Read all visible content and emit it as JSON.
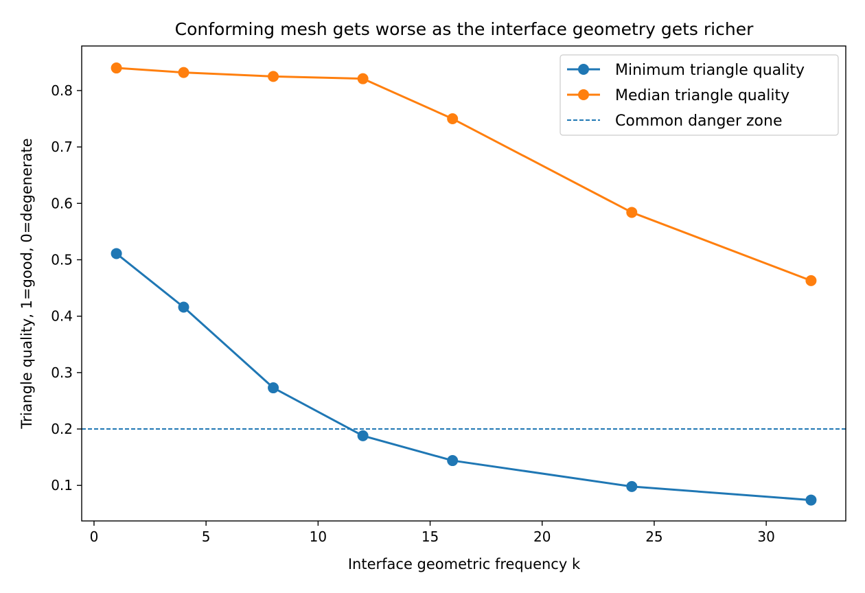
{
  "chart_data": {
    "type": "line",
    "title": "Conforming mesh gets worse as the interface geometry gets richer",
    "xlabel": "Interface geometric frequency k",
    "ylabel": "Triangle quality, 1=good, 0=degenerate",
    "x": [
      1,
      4,
      8,
      12,
      16,
      24,
      32
    ],
    "xlim": [
      -0.55,
      33.55
    ],
    "ylim": [
      0.037,
      0.879
    ],
    "xticks": [
      0,
      5,
      10,
      15,
      20,
      25,
      30
    ],
    "xtick_labels": [
      "0",
      "5",
      "10",
      "15",
      "20",
      "25",
      "30"
    ],
    "yticks": [
      0.1,
      0.2,
      0.3,
      0.4,
      0.5,
      0.6,
      0.7,
      0.8
    ],
    "ytick_labels": [
      "0.1",
      "0.2",
      "0.3",
      "0.4",
      "0.5",
      "0.6",
      "0.7",
      "0.8"
    ],
    "grid": false,
    "legend_position": "top-right",
    "series": [
      {
        "name": "Minimum triangle quality",
        "values": [
          0.511,
          0.416,
          0.273,
          0.188,
          0.144,
          0.098,
          0.074
        ],
        "color": "#1f77b4",
        "marker": "circle"
      },
      {
        "name": "Median triangle quality",
        "values": [
          0.84,
          0.832,
          0.825,
          0.821,
          0.75,
          0.584,
          0.463
        ],
        "color": "#ff7f0e",
        "marker": "circle"
      }
    ],
    "reference_lines": [
      {
        "name": "Common danger zone",
        "y": 0.2,
        "style": "dashed",
        "color": "#1f77b4"
      }
    ]
  }
}
